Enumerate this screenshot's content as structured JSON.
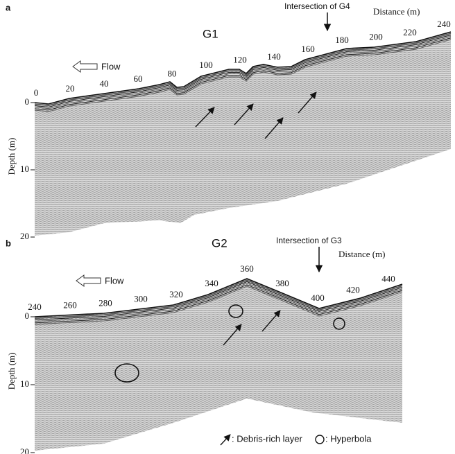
{
  "panels": [
    {
      "label": "a",
      "title": "G1",
      "intersection": "Intersection of G4",
      "distance_label": "Distance (m)",
      "flow": "Flow",
      "distance_ticks": [
        0,
        20,
        40,
        60,
        80,
        100,
        120,
        140,
        160,
        180,
        200,
        220,
        240
      ],
      "depth_label": "Depth (m)",
      "depth_ticks": [
        0,
        10,
        20
      ]
    },
    {
      "label": "b",
      "title": "G2",
      "intersection": "Intersection of G3",
      "distance_label": "Distance (m)",
      "flow": "Flow",
      "distance_ticks": [
        240,
        260,
        280,
        300,
        320,
        340,
        360,
        380,
        400,
        420,
        440
      ],
      "depth_label": "Depth (m)",
      "depth_ticks": [
        0,
        10,
        20
      ]
    }
  ],
  "legend": {
    "debris": ": Debris-rich layer",
    "hyperbola": ": Hyperbola"
  }
}
